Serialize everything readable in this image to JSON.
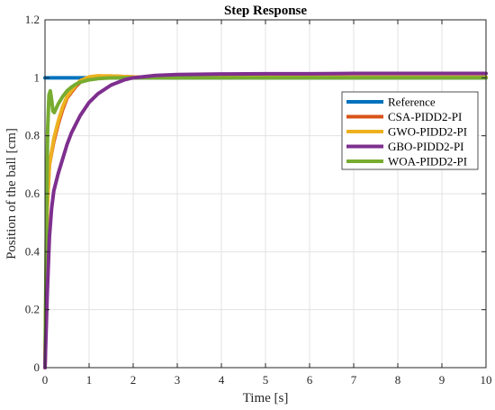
{
  "chart_data": {
    "type": "line",
    "title": "Step Response",
    "xlabel": "Time [s]",
    "ylabel": "Position of the ball [cm]",
    "xlim": [
      0,
      10
    ],
    "ylim": [
      0,
      1.2
    ],
    "xticks": [
      "0",
      "1",
      "2",
      "3",
      "4",
      "5",
      "6",
      "7",
      "8",
      "9",
      "10"
    ],
    "yticks": [
      "0",
      "0.2",
      "0.4",
      "0.6",
      "0.8",
      "1",
      "1.2"
    ],
    "grid": true,
    "legend_position": "top-right",
    "series": [
      {
        "name": "Reference",
        "color": "#0072BD",
        "x": [
          0,
          10
        ],
        "y": [
          1,
          1
        ]
      },
      {
        "name": "CSA-PIDD2-PI",
        "color": "#D95319",
        "x": [
          0,
          0.05,
          0.1,
          0.2,
          0.3,
          0.4,
          0.5,
          0.6,
          0.7,
          0.8,
          1.0,
          1.2,
          1.5,
          1.8,
          2.0,
          3,
          4,
          5,
          6,
          7,
          8,
          9,
          10
        ],
        "y": [
          0,
          0.55,
          0.7,
          0.78,
          0.84,
          0.89,
          0.93,
          0.95,
          0.97,
          0.985,
          1.0,
          1.005,
          1.006,
          1.004,
          1.003,
          1.002,
          1.002,
          1.002,
          1.002,
          1.002,
          1.002,
          1.002,
          1.002
        ]
      },
      {
        "name": "GWO-PIDD2-PI",
        "color": "#EDB120",
        "x": [
          0,
          0.05,
          0.1,
          0.2,
          0.3,
          0.4,
          0.5,
          0.6,
          0.7,
          0.8,
          1.0,
          1.2,
          1.5,
          1.8,
          2.0,
          3,
          4,
          5,
          6,
          7,
          8,
          9,
          10
        ],
        "y": [
          0,
          0.55,
          0.7,
          0.79,
          0.85,
          0.9,
          0.935,
          0.955,
          0.975,
          0.99,
          1.003,
          1.007,
          1.006,
          1.004,
          1.003,
          1.002,
          1.002,
          1.002,
          1.002,
          1.002,
          1.002,
          1.002,
          1.002
        ]
      },
      {
        "name": "GBO-PIDD2-PI",
        "color": "#7E2F8E",
        "x": [
          0,
          0.05,
          0.1,
          0.15,
          0.2,
          0.3,
          0.4,
          0.5,
          0.6,
          0.8,
          1.0,
          1.2,
          1.5,
          1.8,
          2.0,
          2.5,
          3,
          4,
          5,
          6,
          7,
          8,
          9,
          10
        ],
        "y": [
          0,
          0.25,
          0.45,
          0.55,
          0.61,
          0.67,
          0.72,
          0.77,
          0.81,
          0.87,
          0.915,
          0.945,
          0.975,
          0.993,
          1.0,
          1.008,
          1.011,
          1.013,
          1.014,
          1.014,
          1.015,
          1.015,
          1.015,
          1.015
        ]
      },
      {
        "name": "WOA-PIDD2-PI",
        "color": "#77AC30",
        "x": [
          0,
          0.03,
          0.06,
          0.09,
          0.12,
          0.15,
          0.18,
          0.21,
          0.24,
          0.3,
          0.4,
          0.5,
          0.6,
          0.7,
          0.8,
          1.0,
          1.2,
          1.4,
          1.6,
          1.8,
          2.0,
          3,
          4,
          5,
          6,
          7,
          8,
          9,
          10
        ],
        "y": [
          0,
          0.45,
          0.82,
          0.94,
          0.955,
          0.925,
          0.885,
          0.88,
          0.89,
          0.91,
          0.935,
          0.955,
          0.968,
          0.978,
          0.985,
          0.993,
          0.997,
          0.999,
          1.0,
          1.0,
          1.0,
          1.0,
          1.0,
          1.0,
          1.0,
          1.0,
          1.0,
          1.0,
          1.0
        ]
      }
    ]
  }
}
